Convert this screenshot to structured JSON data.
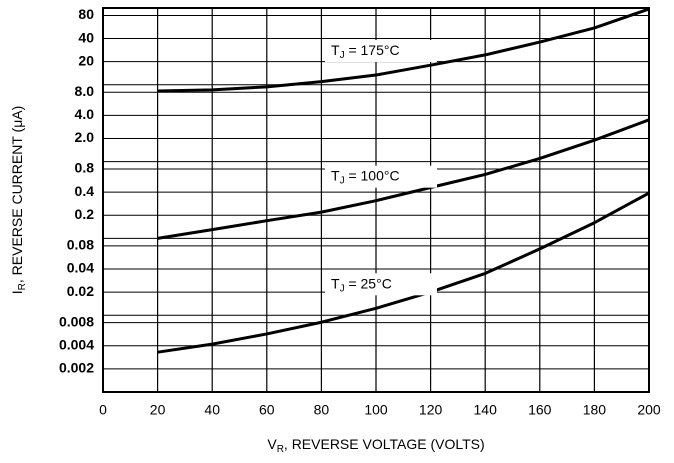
{
  "chart_data": {
    "type": "line",
    "log_y": true,
    "grid": true,
    "y_label_parts": [
      "I",
      "R",
      ", REVERSE CURRENT (μA)"
    ],
    "x_label_parts": [
      "V",
      "R",
      ", REVERSE VOLTAGE (VOLTS)"
    ],
    "xlim": [
      0,
      200
    ],
    "xticks": [
      0,
      20,
      40,
      60,
      80,
      100,
      120,
      140,
      160,
      180,
      200
    ],
    "ylim": [
      0.001,
      100
    ],
    "yticks": [
      80,
      40,
      20,
      {
        "value": 8,
        "label": "8.0"
      },
      {
        "value": 4,
        "label": "4.0"
      },
      {
        "value": 2,
        "label": "2.0"
      },
      0.8,
      0.4,
      0.2,
      0.08,
      0.04,
      0.02,
      0.008,
      0.004,
      0.002
    ],
    "y_minor_grid": [
      10,
      1,
      0.1,
      0.01
    ],
    "x": [
      20,
      40,
      60,
      80,
      100,
      120,
      140,
      160,
      180,
      200
    ],
    "series": [
      {
        "name_parts": [
          "T",
          "J",
          " = 175°C"
        ],
        "color": "#000000",
        "values": [
          8.3,
          8.6,
          9.4,
          11,
          13.4,
          18,
          24.5,
          36,
          55,
          97
        ]
      },
      {
        "name_parts": [
          "T",
          "J",
          " = 100°C"
        ],
        "color": "#000000",
        "values": [
          0.1,
          0.13,
          0.17,
          0.22,
          0.31,
          0.46,
          0.68,
          1.1,
          1.9,
          3.5
        ]
      },
      {
        "name_parts": [
          "T",
          "J",
          " = 25°C"
        ],
        "color": "#000000",
        "values": [
          0.0033,
          0.0042,
          0.0057,
          0.0081,
          0.0123,
          0.02,
          0.035,
          0.073,
          0.16,
          0.39
        ]
      }
    ]
  }
}
